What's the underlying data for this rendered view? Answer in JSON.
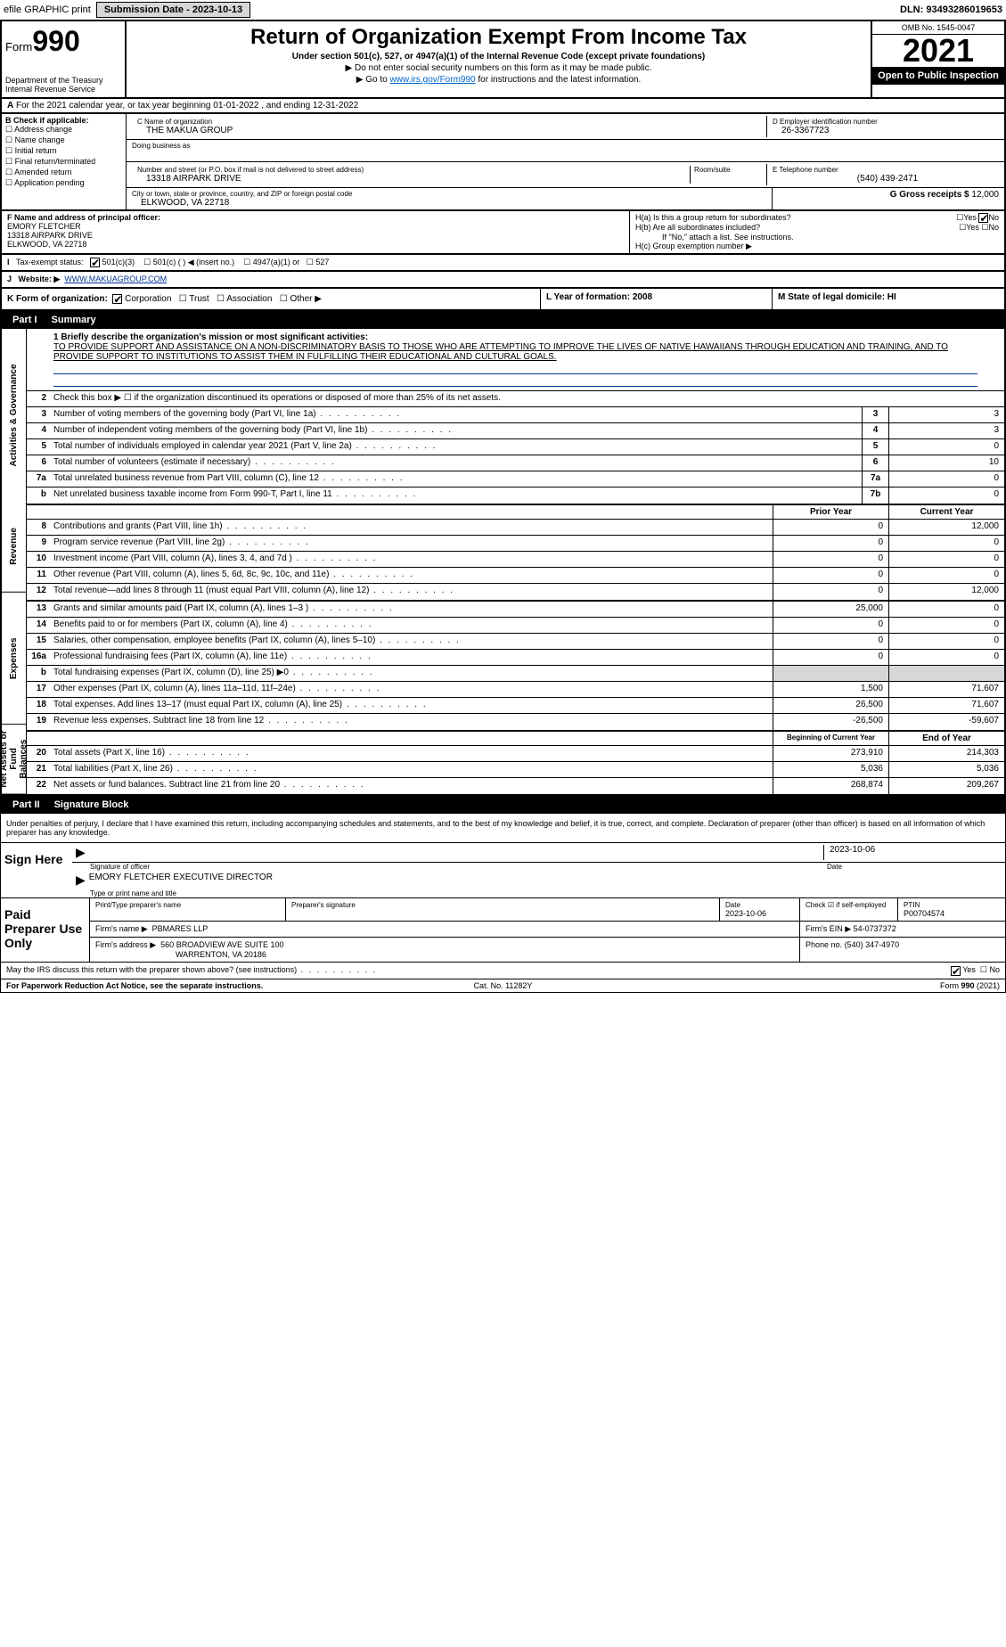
{
  "topbar": {
    "efile": "efile GRAPHIC print",
    "submission_label": "Submission Date - 2023-10-13",
    "dln_label": "DLN: 93493286019653"
  },
  "header": {
    "form_label": "Form",
    "form_number": "990",
    "dept": "Department of the Treasury",
    "irs": "Internal Revenue Service",
    "title": "Return of Organization Exempt From Income Tax",
    "subtitle": "Under section 501(c), 527, or 4947(a)(1) of the Internal Revenue Code (except private foundations)",
    "note1": "▶ Do not enter social security numbers on this form as it may be made public.",
    "note2_pre": "▶ Go to ",
    "note2_link": "www.irs.gov/Form990",
    "note2_post": " for instructions and the latest information.",
    "omb": "OMB No. 1545-0047",
    "year": "2021",
    "otp": "Open to Public Inspection"
  },
  "section_a": {
    "text": "For the 2021 calendar year, or tax year beginning 01-01-2022   , and ending 12-31-2022"
  },
  "section_b": {
    "label": "B Check if applicable:",
    "items": [
      "Address change",
      "Name change",
      "Initial return",
      "Final return/terminated",
      "Amended return",
      "Application pending"
    ]
  },
  "section_c": {
    "name_label": "C Name of organization",
    "name": "THE MAKUA GROUP",
    "dba_label": "Doing business as",
    "addr_label": "Number and street (or P.O. box if mail is not delivered to street address)",
    "room_label": "Room/suite",
    "addr": "13318 AIRPARK DRIVE",
    "city_label": "City or town, state or province, country, and ZIP or foreign postal code",
    "city": "ELKWOOD, VA  22718"
  },
  "section_d": {
    "label": "D Employer identification number",
    "value": "26-3367723"
  },
  "section_e": {
    "label": "E Telephone number",
    "value": "(540) 439-2471"
  },
  "section_g": {
    "label": "G Gross receipts $",
    "value": "12,000"
  },
  "section_f": {
    "label": "F  Name and address of principal officer:",
    "name": "EMORY FLETCHER",
    "addr1": "13318 AIRPARK DRIVE",
    "addr2": "ELKWOOD, VA  22718"
  },
  "section_h": {
    "ha": "H(a)  Is this a group return for subordinates?",
    "hb": "H(b)  Are all subordinates included?",
    "hb_note": "If \"No,\" attach a list. See instructions.",
    "hc": "H(c)  Group exemption number ▶",
    "yes": "Yes",
    "no": "No"
  },
  "section_i": {
    "label": "Tax-exempt status:",
    "o501c3": "501(c)(3)",
    "o501c": "501(c) (  ) ◀ (insert no.)",
    "o4947": "4947(a)(1) or",
    "o527": "527"
  },
  "section_j": {
    "label": "Website: ▶",
    "value": "WWW.MAKUAGROUP.COM"
  },
  "section_k": {
    "label": "K Form of organization:",
    "corp": "Corporation",
    "trust": "Trust",
    "assoc": "Association",
    "other": "Other ▶"
  },
  "section_l": {
    "label": "L Year of formation: 2008"
  },
  "section_m": {
    "label": "M State of legal domicile: HI"
  },
  "part1": {
    "tag": "Part I",
    "title": "Summary",
    "q1": "1 Briefly describe the organization's mission or most significant activities:",
    "mission": "TO PROVIDE SUPPORT AND ASSISTANCE ON A NON-DISCRIMINATORY BASIS TO THOSE WHO ARE ATTEMPTING TO IMPROVE THE LIVES OF NATIVE HAWAIIANS THROUGH EDUCATION AND TRAINING, AND TO PROVIDE SUPPORT TO INSTITUTIONS TO ASSIST THEM IN FULFILLING THEIR EDUCATIONAL AND CULTURAL GOALS.",
    "q2": "Check this box ▶ ☐ if the organization discontinued its operations or disposed of more than 25% of its net assets.",
    "sidelabels": {
      "gov": "Activities & Governance",
      "rev": "Revenue",
      "exp": "Expenses",
      "net": "Net Assets or Fund Balances"
    },
    "gov_rows": [
      {
        "n": "3",
        "t": "Number of voting members of the governing body (Part VI, line 1a)",
        "box": "3",
        "v": "3"
      },
      {
        "n": "4",
        "t": "Number of independent voting members of the governing body (Part VI, line 1b)",
        "box": "4",
        "v": "3"
      },
      {
        "n": "5",
        "t": "Total number of individuals employed in calendar year 2021 (Part V, line 2a)",
        "box": "5",
        "v": "0"
      },
      {
        "n": "6",
        "t": "Total number of volunteers (estimate if necessary)",
        "box": "6",
        "v": "10"
      },
      {
        "n": "7a",
        "t": "Total unrelated business revenue from Part VIII, column (C), line 12",
        "box": "7a",
        "v": "0"
      },
      {
        "n": "b",
        "t": "Net unrelated business taxable income from Form 990-T, Part I, line 11",
        "box": "7b",
        "v": "0"
      }
    ],
    "col_prior": "Prior Year",
    "col_current": "Current Year",
    "rev_rows": [
      {
        "n": "8",
        "t": "Contributions and grants (Part VIII, line 1h)",
        "p": "0",
        "c": "12,000"
      },
      {
        "n": "9",
        "t": "Program service revenue (Part VIII, line 2g)",
        "p": "0",
        "c": "0"
      },
      {
        "n": "10",
        "t": "Investment income (Part VIII, column (A), lines 3, 4, and 7d )",
        "p": "0",
        "c": "0"
      },
      {
        "n": "11",
        "t": "Other revenue (Part VIII, column (A), lines 5, 6d, 8c, 9c, 10c, and 11e)",
        "p": "0",
        "c": "0"
      },
      {
        "n": "12",
        "t": "Total revenue—add lines 8 through 11 (must equal Part VIII, column (A), line 12)",
        "p": "0",
        "c": "12,000"
      }
    ],
    "exp_rows": [
      {
        "n": "13",
        "t": "Grants and similar amounts paid (Part IX, column (A), lines 1–3 )",
        "p": "25,000",
        "c": "0"
      },
      {
        "n": "14",
        "t": "Benefits paid to or for members (Part IX, column (A), line 4)",
        "p": "0",
        "c": "0"
      },
      {
        "n": "15",
        "t": "Salaries, other compensation, employee benefits (Part IX, column (A), lines 5–10)",
        "p": "0",
        "c": "0"
      },
      {
        "n": "16a",
        "t": "Professional fundraising fees (Part IX, column (A), line 11e)",
        "p": "0",
        "c": "0"
      },
      {
        "n": "b",
        "t": "Total fundraising expenses (Part IX, column (D), line 25) ▶0",
        "p": "",
        "c": "",
        "shaded": true
      },
      {
        "n": "17",
        "t": "Other expenses (Part IX, column (A), lines 11a–11d, 11f–24e)",
        "p": "1,500",
        "c": "71,607"
      },
      {
        "n": "18",
        "t": "Total expenses. Add lines 13–17 (must equal Part IX, column (A), line 25)",
        "p": "26,500",
        "c": "71,607"
      },
      {
        "n": "19",
        "t": "Revenue less expenses. Subtract line 18 from line 12",
        "p": "-26,500",
        "c": "-59,607"
      }
    ],
    "col_begin": "Beginning of Current Year",
    "col_end": "End of Year",
    "net_rows": [
      {
        "n": "20",
        "t": "Total assets (Part X, line 16)",
        "p": "273,910",
        "c": "214,303"
      },
      {
        "n": "21",
        "t": "Total liabilities (Part X, line 26)",
        "p": "5,036",
        "c": "5,036"
      },
      {
        "n": "22",
        "t": "Net assets or fund balances. Subtract line 21 from line 20",
        "p": "268,874",
        "c": "209,267"
      }
    ]
  },
  "part2": {
    "tag": "Part II",
    "title": "Signature Block",
    "penalties": "Under penalties of perjury, I declare that I have examined this return, including accompanying schedules and statements, and to the best of my knowledge and belief, it is true, correct, and complete. Declaration of preparer (other than officer) is based on all information of which preparer has any knowledge.",
    "sign_here": "Sign Here",
    "sig_officer": "Signature of officer",
    "sig_date": "Date",
    "sig_date_val": "2023-10-06",
    "officer_name": "EMORY FLETCHER  EXECUTIVE DIRECTOR",
    "type_name": "Type or print name and title",
    "paid": "Paid Preparer Use Only",
    "prep_name_label": "Print/Type preparer's name",
    "prep_sig_label": "Preparer's signature",
    "prep_date_label": "Date",
    "prep_date": "2023-10-06",
    "self_emp": "Check ☑ if self-employed",
    "ptin_label": "PTIN",
    "ptin": "P00704574",
    "firm_name_label": "Firm's name    ▶",
    "firm_name": "PBMARES LLP",
    "firm_ein_label": "Firm's EIN ▶",
    "firm_ein": "54-0737372",
    "firm_addr_label": "Firm's address ▶",
    "firm_addr1": "560 BROADVIEW AVE SUITE 100",
    "firm_addr2": "WARRENTON, VA  20186",
    "phone_label": "Phone no.",
    "phone": "(540) 347-4970",
    "may_irs": "May the IRS discuss this return with the preparer shown above? (see instructions)",
    "footer_left": "For Paperwork Reduction Act Notice, see the separate instructions.",
    "footer_mid": "Cat. No. 11282Y",
    "footer_right": "Form 990 (2021)"
  },
  "colors": {
    "link": "#003399",
    "bg": "#ffffff",
    "border": "#000000",
    "shaded": "#d7d7d7"
  }
}
